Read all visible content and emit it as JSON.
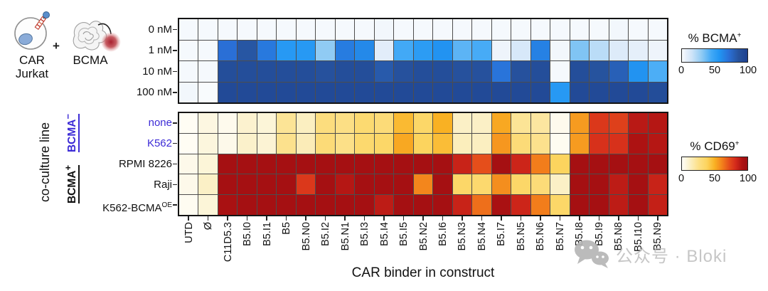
{
  "figure": {
    "icons": {
      "car_line1": "CAR",
      "car_line2": "Jurkat",
      "plus": "+",
      "bcma": "BCMA"
    },
    "x_axis_title": "CAR binder in construct",
    "y_axis_group_title": "co-culture line",
    "watermark_text": "公众号 · Bloki"
  },
  "style": {
    "accent_blue": "#3c2bd6",
    "watermark_gray": "#c2c2c2",
    "grid_line": "#4d4d4d",
    "plot_border": "#141414"
  },
  "chart_data": [
    {
      "type": "heatmap",
      "name": "BCMA tetramer binding",
      "rows": [
        {
          "label": "0 nM"
        },
        {
          "label": "1 nM"
        },
        {
          "label": "10 nM"
        },
        {
          "label": "100 nM"
        }
      ],
      "columns": [
        "UTD",
        "Ø",
        "C11D5.3",
        "B5.I0",
        "B5.I1",
        "B5",
        "B5.N0",
        "B5.I2",
        "B5.N1",
        "B5.I3",
        "B5.I4",
        "B5.I5",
        "B5.N2",
        "B5.I6",
        "B5.N3",
        "B5.N4",
        "B5.I7",
        "B5.N5",
        "B5.N6",
        "B5.N7",
        "B5.I8",
        "B5.I9",
        "B5.N8",
        "B5.I10",
        "B5.N9"
      ],
      "values": [
        [
          2,
          2,
          2,
          2,
          2,
          2,
          2,
          2,
          2,
          2,
          3,
          2,
          2,
          2,
          2,
          2,
          2,
          2,
          2,
          2,
          2,
          2,
          3,
          2,
          2
        ],
        [
          2,
          2,
          72,
          85,
          68,
          55,
          55,
          30,
          67,
          62,
          8,
          45,
          53,
          58,
          40,
          44,
          4,
          12,
          65,
          3,
          33,
          20,
          10,
          7,
          4
        ],
        [
          2,
          2,
          90,
          90,
          90,
          90,
          90,
          88,
          90,
          90,
          83,
          88,
          90,
          90,
          88,
          88,
          70,
          88,
          90,
          2,
          90,
          87,
          80,
          58,
          43
        ],
        [
          3,
          1,
          93,
          93,
          93,
          93,
          93,
          93,
          93,
          93,
          93,
          93,
          93,
          93,
          93,
          93,
          93,
          93,
          93,
          55,
          93,
          93,
          93,
          93,
          91
        ]
      ],
      "colormap_stops": [
        [
          0,
          "#fbfdfe"
        ],
        [
          6,
          "#e8f0fa"
        ],
        [
          15,
          "#cfe4f8"
        ],
        [
          30,
          "#90cbf4"
        ],
        [
          45,
          "#42a9f6"
        ],
        [
          57,
          "#2196f3"
        ],
        [
          72,
          "#2a6fd6"
        ],
        [
          86,
          "#27549f"
        ],
        [
          100,
          "#1d3f8f"
        ]
      ],
      "colorbar": {
        "title_base": "% BCMA",
        "title_sup": "+",
        "ticks": [
          0,
          50,
          100
        ]
      }
    },
    {
      "type": "heatmap",
      "name": "CD69 activation by co-culture",
      "rows": [
        {
          "label": "none",
          "accent": true
        },
        {
          "label": "K562",
          "accent": true
        },
        {
          "label": "RPMI 8226"
        },
        {
          "label": "Raji"
        },
        {
          "label": "K562-BCMA",
          "sup": "OE"
        }
      ],
      "row_groups": [
        {
          "label_base": "BCMA",
          "label_sup": "−",
          "rows": [
            0,
            1
          ],
          "accent": true
        },
        {
          "label_base": "BCMA",
          "label_sup": "+",
          "rows": [
            2,
            4
          ],
          "accent": false
        }
      ],
      "columns": [
        "UTD",
        "Ø",
        "C11D5.3",
        "B5.I0",
        "B5.I1",
        "B5",
        "B5.N0",
        "B5.I2",
        "B5.N1",
        "B5.I3",
        "B5.I4",
        "B5.I5",
        "B5.N2",
        "B5.I6",
        "B5.N3",
        "B5.N4",
        "B5.I7",
        "B5.N5",
        "B5.N6",
        "B5.N7",
        "B5.I8",
        "B5.I9",
        "B5.N8",
        "B5.I10",
        "B5.N9"
      ],
      "values": [
        [
          1,
          6,
          3,
          10,
          8,
          22,
          13,
          28,
          26,
          32,
          30,
          47,
          35,
          50,
          12,
          12,
          52,
          22,
          20,
          3,
          55,
          78,
          76,
          89,
          90
        ],
        [
          1,
          7,
          4,
          11,
          9,
          24,
          15,
          30,
          25,
          33,
          35,
          52,
          38,
          46,
          14,
          13,
          56,
          30,
          24,
          2,
          55,
          80,
          80,
          92,
          90
        ],
        [
          4,
          8,
          96,
          96,
          96,
          96,
          96,
          96,
          96,
          96,
          96,
          96,
          96,
          96,
          85,
          72,
          96,
          84,
          62,
          38,
          96,
          96,
          96,
          96,
          96
        ],
        [
          4,
          12,
          96,
          96,
          96,
          96,
          78,
          96,
          90,
          96,
          96,
          96,
          60,
          96,
          35,
          33,
          58,
          35,
          30,
          12,
          96,
          96,
          88,
          96,
          85
        ],
        [
          2,
          8,
          94,
          96,
          96,
          96,
          96,
          96,
          96,
          96,
          88,
          96,
          96,
          96,
          85,
          65,
          94,
          84,
          62,
          35,
          96,
          96,
          88,
          96,
          86
        ]
      ],
      "colormap_stops": [
        [
          0,
          "#fffef8"
        ],
        [
          5,
          "#fdf8e6"
        ],
        [
          12,
          "#fbf0c6"
        ],
        [
          25,
          "#fce088"
        ],
        [
          38,
          "#fcd45e"
        ],
        [
          50,
          "#f9b123"
        ],
        [
          62,
          "#f27d1b"
        ],
        [
          72,
          "#e54e1b"
        ],
        [
          82,
          "#d42a1b"
        ],
        [
          92,
          "#ad1212"
        ],
        [
          100,
          "#9c0e12"
        ]
      ],
      "colorbar": {
        "title_base": "% CD69",
        "title_sup": "+",
        "ticks": [
          0,
          50,
          100
        ]
      }
    }
  ]
}
